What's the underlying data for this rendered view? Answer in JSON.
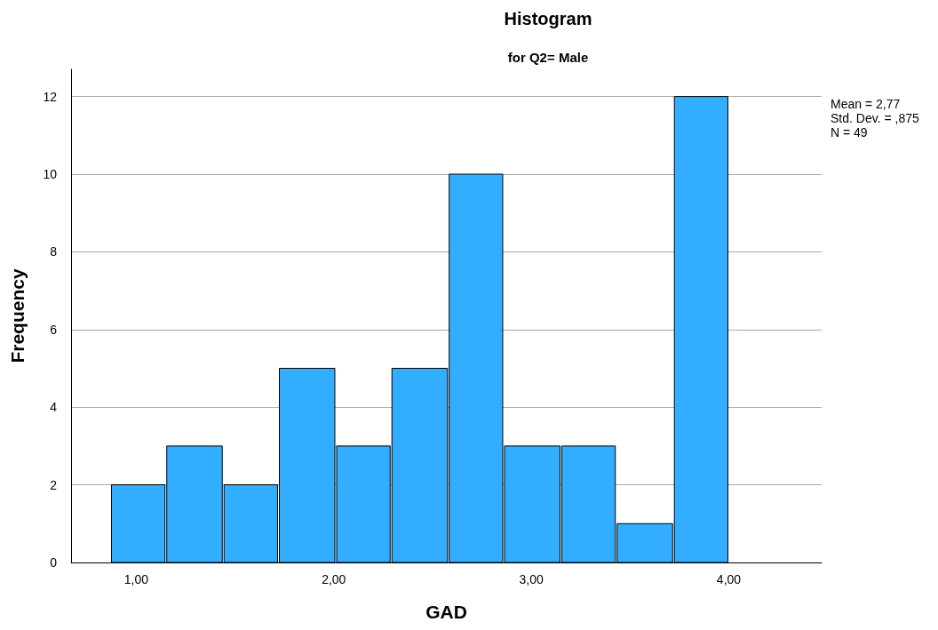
{
  "chart_data": {
    "type": "histogram",
    "title": "Histogram",
    "subtitle": "for Q2= Male",
    "xlabel": "GAD",
    "ylabel": "Frequency",
    "bins": [
      0.87,
      1.15,
      1.44,
      1.72,
      2.01,
      2.29,
      2.58,
      2.86,
      3.15,
      3.43,
      3.72,
      4.0
    ],
    "values": [
      2,
      3,
      2,
      5,
      3,
      5,
      10,
      3,
      3,
      1,
      12
    ],
    "color": "#33adff",
    "xlim": [
      0.67,
      4.47
    ],
    "xticks": [
      {
        "value": 1,
        "label": "1,00"
      },
      {
        "value": 2,
        "label": "2,00"
      },
      {
        "value": 3,
        "label": "3,00"
      },
      {
        "value": 4,
        "label": "4,00"
      }
    ],
    "ylim": [
      0,
      12.7
    ],
    "yticks": [
      0,
      2,
      4,
      6,
      8,
      10,
      12
    ],
    "grid": "y",
    "annotations": [
      "Mean = 2,77",
      "Std. Dev. = ,875",
      "N = 49"
    ]
  }
}
